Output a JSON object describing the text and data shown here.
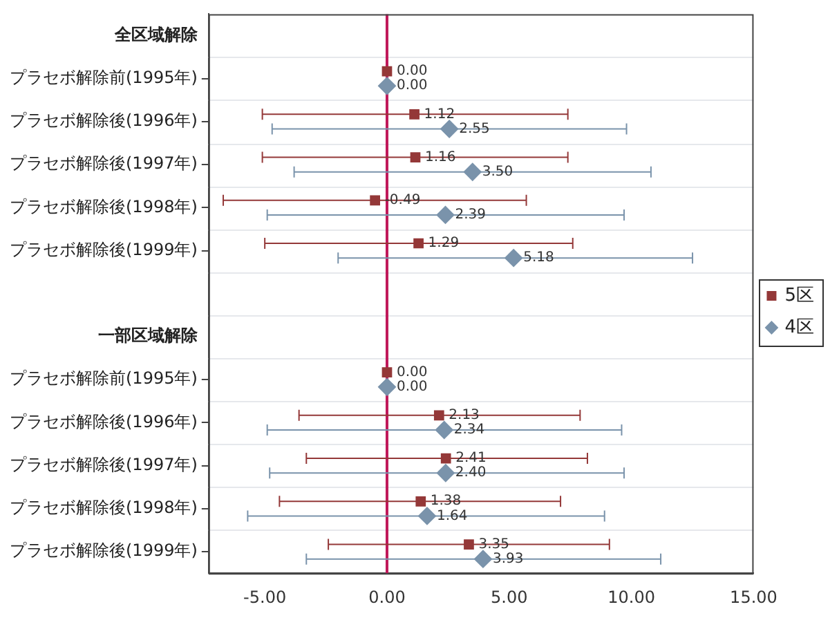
{
  "chart_data": {
    "type": "scatter",
    "orientation": "horizontal",
    "categories": [
      "全区域解除",
      "プラセボ解除前(1995年)",
      "プラセボ解除後(1996年)",
      "プラセボ解除後(1997年)",
      "プラセボ解除後(1998年)",
      "プラセボ解除後(1999年)",
      null,
      "一部区域解除",
      "プラセボ解除前(1995年)",
      "プラセボ解除後(1996年)",
      "プラセボ解除後(1997年)",
      "プラセボ解除後(1998年)",
      "プラセボ解除後(1999年)"
    ],
    "series": [
      {
        "name": "5区",
        "color": "#943838",
        "marker": "square",
        "values": [
          null,
          0,
          1.12,
          1.16,
          -0.49,
          1.29,
          null,
          null,
          0,
          2.13,
          2.41,
          1.38,
          3.35
        ],
        "errors": [
          null,
          null,
          [
            -5.1,
            7.4
          ],
          [
            -5.1,
            7.4
          ],
          [
            -6.7,
            5.7
          ],
          [
            -5.0,
            7.6
          ],
          null,
          null,
          null,
          [
            -3.6,
            7.9
          ],
          [
            -3.3,
            8.2
          ],
          [
            -4.4,
            7.1
          ],
          [
            -2.4,
            9.1
          ]
        ],
        "value_labels": [
          null,
          "0.00",
          "1.12",
          "1.16",
          "-0.49",
          "1.29",
          null,
          null,
          "0.00",
          "2.13",
          "2.41",
          "1.38",
          "3.35"
        ]
      },
      {
        "name": "4区",
        "color": "#7a93ab",
        "marker": "diamond",
        "values": [
          null,
          0,
          2.55,
          3.5,
          2.39,
          5.18,
          null,
          null,
          0,
          2.34,
          2.4,
          1.64,
          3.93
        ],
        "errors": [
          null,
          null,
          [
            -4.7,
            9.8
          ],
          [
            -3.8,
            10.8
          ],
          [
            -4.9,
            9.7
          ],
          [
            -2.0,
            12.5
          ],
          null,
          null,
          null,
          [
            -4.9,
            9.6
          ],
          [
            -4.8,
            9.7
          ],
          [
            -5.7,
            8.9
          ],
          [
            -3.3,
            11.2
          ]
        ],
        "value_labels": [
          null,
          "0.00",
          "2.55",
          "3.50",
          "2.39",
          "5.18",
          null,
          null,
          "0.00",
          "2.34",
          "2.40",
          "1.64",
          "3.93"
        ]
      }
    ],
    "xlim": [
      -7.3,
      15
    ],
    "xticks": [
      {
        "value": -5,
        "label": "-5.00"
      },
      {
        "value": 0,
        "label": "0.00"
      },
      {
        "value": 5,
        "label": "5.00"
      },
      {
        "value": 10,
        "label": "10.00"
      },
      {
        "value": 15,
        "label": "15.00"
      }
    ],
    "ref_lines": [
      {
        "axis": "x",
        "value": 0,
        "color": "#c0185a"
      }
    ],
    "grid": "y",
    "legend": "right"
  }
}
